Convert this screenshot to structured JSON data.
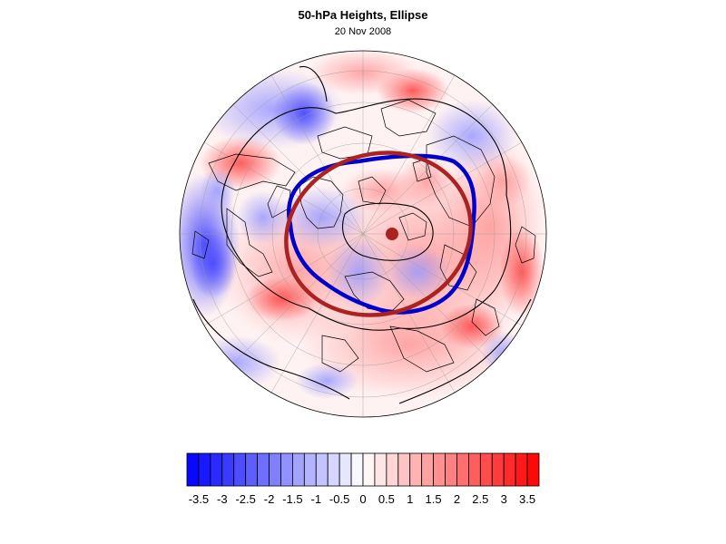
{
  "header": {
    "title": "50-hPa Heights, Ellipse",
    "subtitle": "20 Nov 2008"
  },
  "colors": {
    "negative": "#0000ff",
    "positive": "#ff0000",
    "ellipse_observed": "#0000cc",
    "ellipse_fit": "#aa2222",
    "center_marker": "#aa2222",
    "contour": "#000000"
  },
  "colorbar": {
    "min": -3.75,
    "max": 3.75,
    "step": 0.25,
    "tick_labels": [
      "-3.5",
      "-3",
      "-2.5",
      "-2",
      "-1.5",
      "-1",
      "-0.5",
      "0",
      "0.5",
      "1",
      "1.5",
      "2",
      "2.5",
      "3",
      "3.5"
    ],
    "tick_values": [
      -3.5,
      -3,
      -2.5,
      -2,
      -1.5,
      -1,
      -0.5,
      0,
      0.5,
      1,
      1.5,
      2,
      2.5,
      3,
      3.5
    ]
  },
  "map": {
    "projection": "polar-orthographic",
    "hemisphere": "north",
    "field": "anomaly",
    "overlays": [
      "height-contours",
      "coastlines",
      "graticule",
      "vortex-edge",
      "fitted-ellipse",
      "vortex-center"
    ]
  }
}
